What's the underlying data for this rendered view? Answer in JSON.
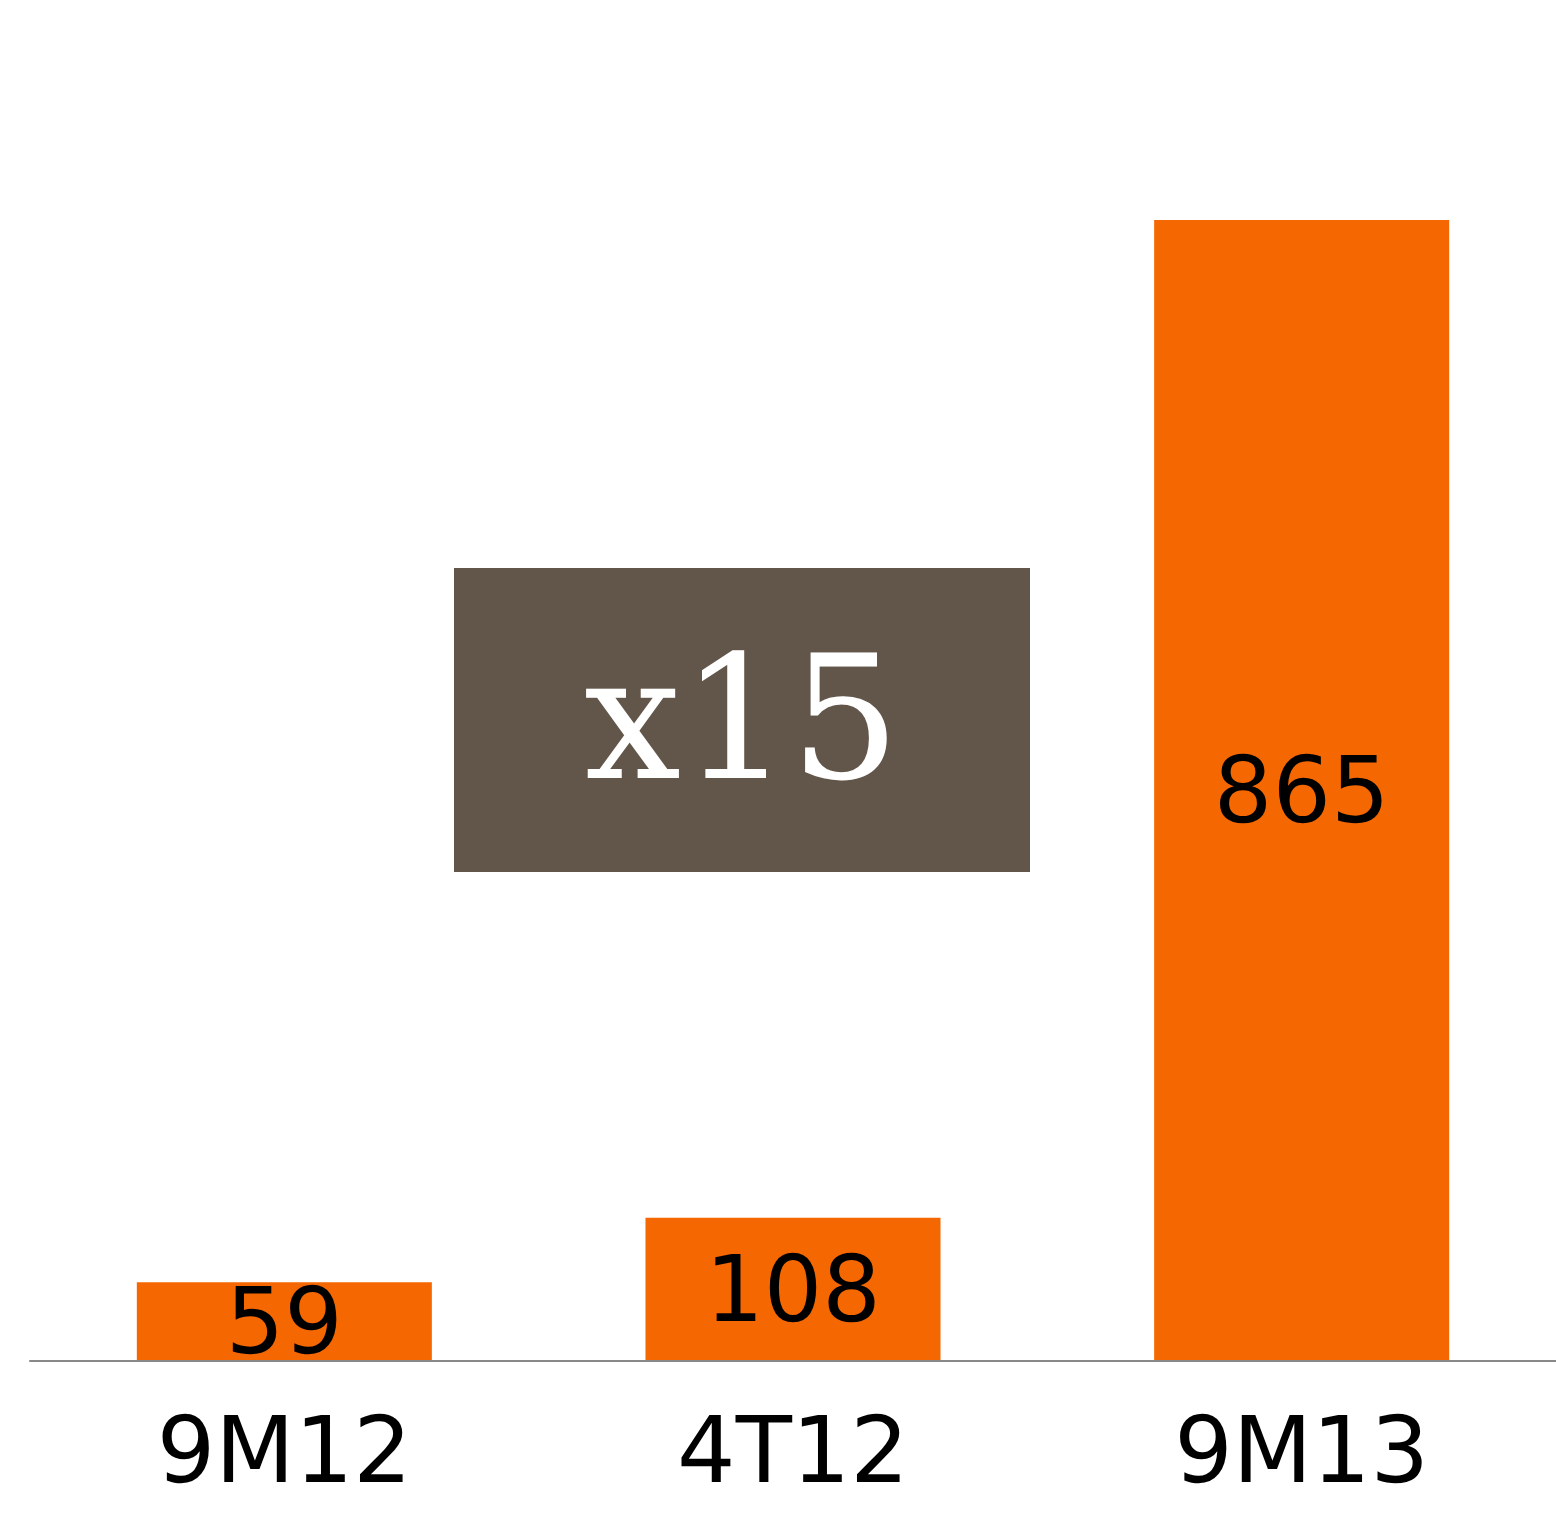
{
  "chart_data": {
    "type": "bar",
    "categories": [
      "9M12",
      "4T12",
      "9M13"
    ],
    "series": [
      {
        "color": "#f46701",
        "values": [
          59,
          108,
          865
        ]
      }
    ],
    "data_labels": true,
    "annotations": [
      "x15"
    ]
  }
}
